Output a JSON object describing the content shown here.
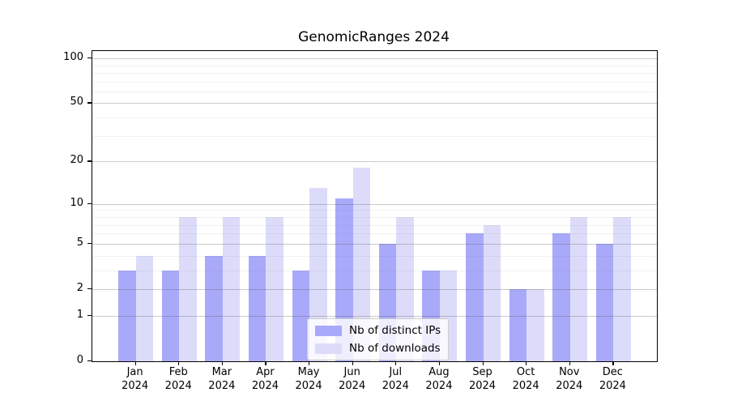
{
  "figure": {
    "background": "#ffffff"
  },
  "chart_data": {
    "type": "bar",
    "title": "GenomicRanges 2024",
    "categories": [
      "Jan 2024",
      "Feb 2024",
      "Mar 2024",
      "Apr 2024",
      "May 2024",
      "Jun 2024",
      "Jul 2024",
      "Aug 2024",
      "Sep 2024",
      "Oct 2024",
      "Nov 2024",
      "Dec 2024"
    ],
    "series": [
      {
        "name": "Nb of distinct IPs",
        "color": "#a9a9fa",
        "values": [
          3,
          3,
          4,
          4,
          3,
          11,
          5,
          3,
          6,
          2,
          6,
          5
        ]
      },
      {
        "name": "Nb of downloads",
        "color": "#dcdcfa",
        "values": [
          4,
          8,
          8,
          8,
          13,
          18,
          8,
          3,
          7,
          2,
          8,
          8
        ]
      }
    ],
    "xlabel": "",
    "ylabel": "",
    "yscale": "log1p",
    "ylim": [
      0,
      112
    ],
    "yticks": [
      0,
      1,
      2,
      5,
      10,
      20,
      50,
      100
    ],
    "minor_gridlines": [
      3,
      4,
      6,
      7,
      8,
      9,
      30,
      40,
      60,
      70,
      80,
      90
    ],
    "grid": "horizontal",
    "legend_position": "inside-lower-center"
  }
}
